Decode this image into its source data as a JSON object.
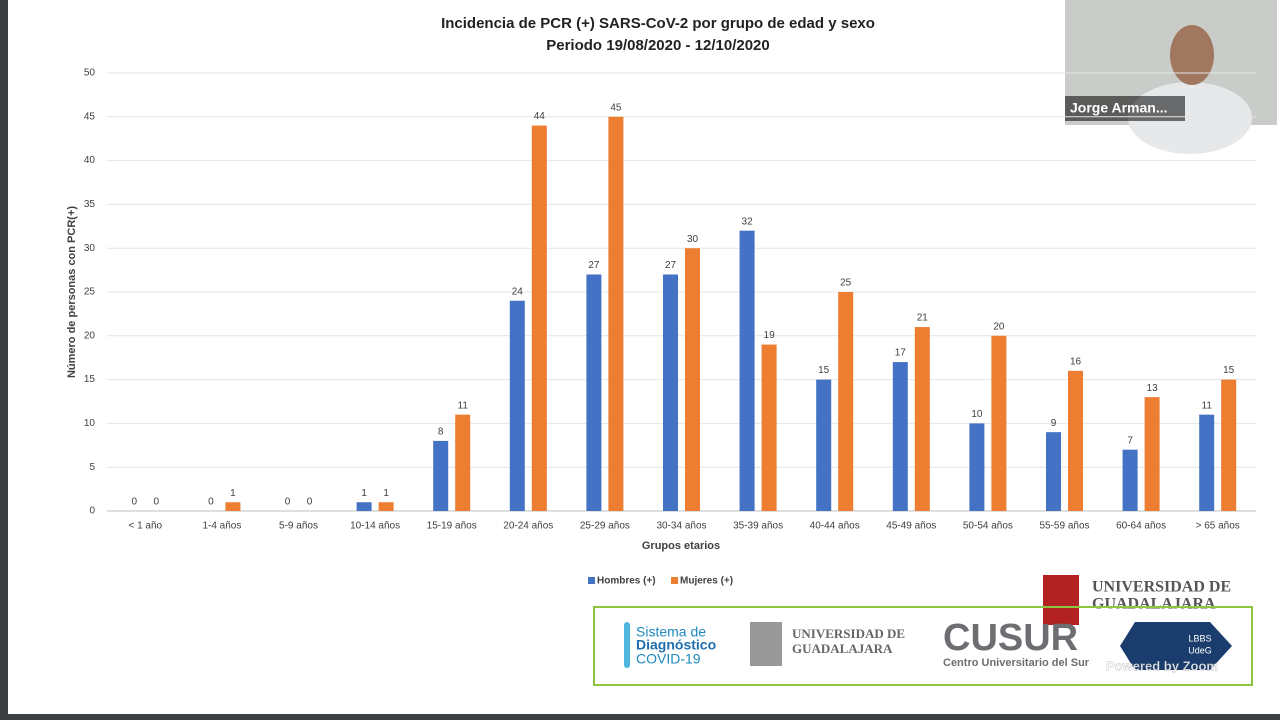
{
  "chart_data": {
    "type": "bar",
    "title": "Incidencia de PCR (+) SARS-CoV-2 por grupo de edad y sexo",
    "subtitle": "Periodo 19/08/2020 - 12/10/2020",
    "x_label": "Grupos etarios",
    "y_label": "Número de personas con PCR(+)",
    "categories": [
      "< 1 año",
      "1-4 años",
      "5-9 años",
      "10-14 años",
      "15-19 años",
      "20-24 años",
      "25-29 años",
      "30-34 años",
      "35-39 años",
      "40-44 años",
      "45-49 años",
      "50-54 años",
      "55-59 años",
      "60-64 años",
      "> 65 años"
    ],
    "series": [
      {
        "name": "Hombres (+)",
        "color": "#4472c4",
        "values": [
          0,
          0,
          0,
          1,
          8,
          24,
          27,
          27,
          32,
          15,
          17,
          10,
          9,
          7,
          11
        ]
      },
      {
        "name": "Mujeres (+)",
        "color": "#ed7d31",
        "values": [
          0,
          1,
          0,
          1,
          11,
          44,
          45,
          30,
          19,
          25,
          21,
          20,
          16,
          13,
          15
        ]
      }
    ],
    "ylim": [
      0,
      50
    ],
    "yticks": [
      0,
      5,
      10,
      15,
      20,
      25,
      30,
      35,
      40,
      45,
      50
    ],
    "grid": true,
    "legend": "bottom"
  },
  "zoom": {
    "participant": "Jorge Arman...",
    "watermark": "Powered by Zoom"
  },
  "logos": {
    "top": [
      "UNIVERSIDAD DE",
      "GUADALAJARA"
    ],
    "sistema": [
      "Sistema de",
      "Diagnóstico",
      "COVID-19"
    ],
    "udeg": [
      "UNIVERSIDAD DE",
      "GUADALAJARA"
    ],
    "cusur": "CUSUR",
    "cusur_sub": "Centro Universitario del Sur",
    "lbbs": [
      "LBBS",
      "UdeG"
    ]
  }
}
